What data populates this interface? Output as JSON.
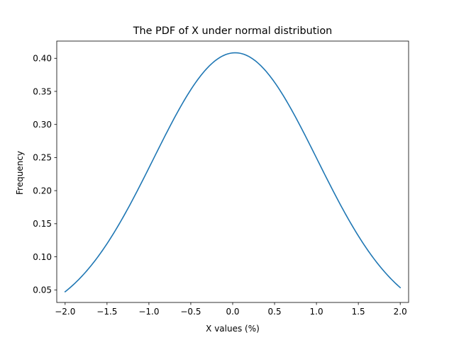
{
  "chart_data": {
    "type": "line",
    "title": "The PDF of X under normal distribution",
    "xlabel": "X values (%)",
    "ylabel": "Frequency",
    "xlim": [
      -2.1,
      2.1
    ],
    "ylim": [
      0.031,
      0.426
    ],
    "xticks": [
      -2.0,
      -1.5,
      -1.0,
      -0.5,
      0.0,
      0.5,
      1.0,
      1.5,
      2.0
    ],
    "xtick_labels": [
      "−2.0",
      "−1.5",
      "−1.0",
      "−0.5",
      "0.0",
      "0.5",
      "1.0",
      "1.5",
      "2.0"
    ],
    "yticks": [
      0.05,
      0.1,
      0.15,
      0.2,
      0.25,
      0.3,
      0.35,
      0.4
    ],
    "ytick_labels": [
      "0.05",
      "0.10",
      "0.15",
      "0.20",
      "0.25",
      "0.30",
      "0.35",
      "0.40"
    ],
    "grid": false,
    "legend": "none",
    "series": [
      {
        "color": "#1f77b4",
        "distribution": "normal",
        "mean": 0.03,
        "std": 0.977,
        "x_range": [
          -2.0,
          2.0
        ]
      }
    ]
  }
}
